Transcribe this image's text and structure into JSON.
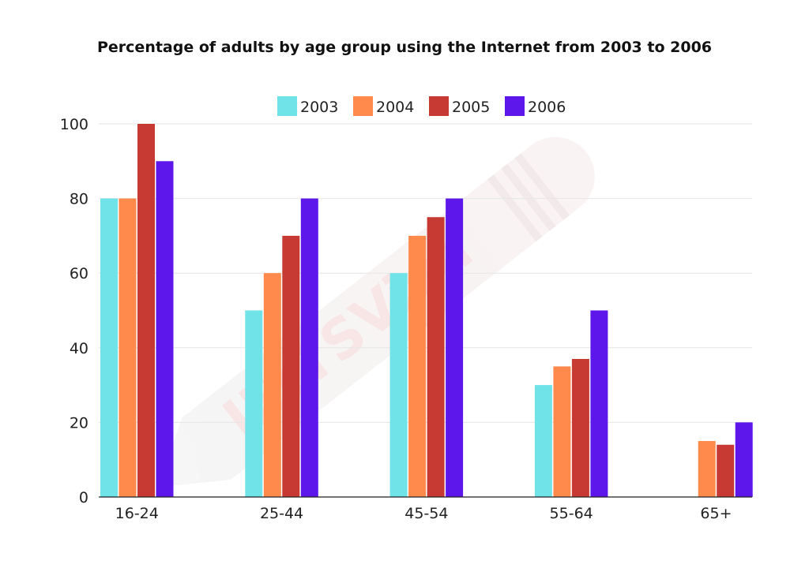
{
  "chart_data": {
    "type": "bar",
    "title": "Percentage of adults by age group using the Internet from 2003 to 2006",
    "xlabel": "",
    "ylabel": "",
    "categories": [
      "16-24",
      "25-44",
      "45-54",
      "55-64",
      "65+"
    ],
    "series": [
      {
        "name": "2003",
        "color": "#6fe3e8",
        "values": [
          80,
          50,
          60,
          30,
          0
        ]
      },
      {
        "name": "2004",
        "color": "#ff8a4c",
        "values": [
          80,
          60,
          70,
          35,
          15
        ]
      },
      {
        "name": "2005",
        "color": "#c63a33",
        "values": [
          100,
          70,
          75,
          37,
          14
        ]
      },
      {
        "name": "2006",
        "color": "#5e17eb",
        "values": [
          90,
          80,
          80,
          50,
          20
        ]
      }
    ],
    "ylim": [
      0,
      100
    ],
    "yticks": [
      "0",
      "20",
      "40",
      "60",
      "80",
      "100"
    ],
    "grid": true,
    "legend_position": "top-center"
  },
  "watermark": {
    "text": "IELTSViva"
  }
}
